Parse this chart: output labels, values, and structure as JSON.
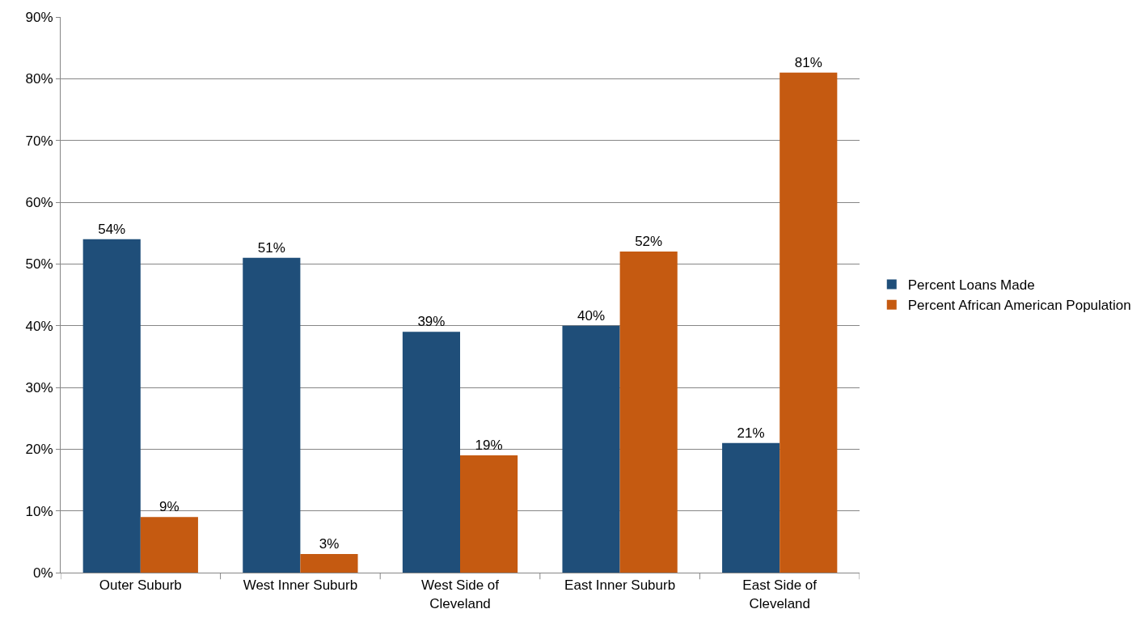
{
  "chart_data": {
    "type": "bar",
    "categories": [
      "Outer Suburb",
      "West Inner Suburb",
      "West Side of Cleveland",
      "East Inner Suburb",
      "East Side of Cleveland"
    ],
    "series": [
      {
        "name": "Percent Loans Made",
        "color": "#1f4e79",
        "values": [
          54,
          51,
          39,
          40,
          21
        ],
        "value_labels": [
          "54%",
          "51%",
          "39%",
          "40%",
          "21%"
        ]
      },
      {
        "name": "Percent African American Population",
        "color": "#c55a11",
        "values": [
          9,
          3,
          19,
          52,
          81
        ],
        "value_labels": [
          "9%",
          "3%",
          "19%",
          "52%",
          "81%"
        ]
      }
    ],
    "ylim": [
      0,
      90
    ],
    "yticks": [
      {
        "value": 0,
        "label": "0%"
      },
      {
        "value": 10,
        "label": "10%"
      },
      {
        "value": 20,
        "label": "20%"
      },
      {
        "value": 30,
        "label": "30%"
      },
      {
        "value": 40,
        "label": "40%"
      },
      {
        "value": 50,
        "label": "50%"
      },
      {
        "value": 60,
        "label": "60%"
      },
      {
        "value": 70,
        "label": "70%"
      },
      {
        "value": 80,
        "label": "80%"
      },
      {
        "value": 90,
        "label": "90%"
      }
    ],
    "grid": "y",
    "legend": "right"
  }
}
